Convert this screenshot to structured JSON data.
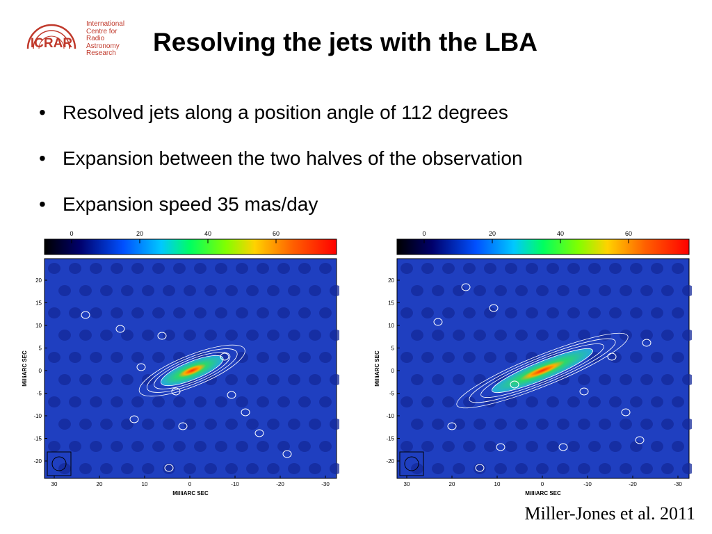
{
  "logo": {
    "acronym": "ICRAR",
    "name_lines": "International\nCentre for\nRadio\nAstronomy\nResearch",
    "color": "#c0392b"
  },
  "slide": {
    "title": "Resolving the jets with the LBA",
    "bullets": [
      "Resolved jets along a position angle of 112 degrees",
      "Expansion between the two halves of the observation",
      "Expansion speed 35 mas/day"
    ],
    "credit": "Miller-Jones et al. 2011"
  },
  "figures": {
    "colorbar_ticks": [
      "0",
      "20",
      "40",
      "60"
    ],
    "y_ticks": [
      "20",
      "15",
      "10",
      "5",
      "0",
      "-5",
      "-10",
      "-15",
      "-20"
    ],
    "x_ticks": [
      "30",
      "20",
      "10",
      "0",
      "-10",
      "-20",
      "-30"
    ],
    "xlabel": "MilliARC SEC",
    "ylabel": "MilliARC SEC",
    "colors": {
      "background": "#1f3fc0",
      "core": "#ff2a00",
      "jet": "#2bd86b",
      "contour": "#ffffff"
    }
  }
}
